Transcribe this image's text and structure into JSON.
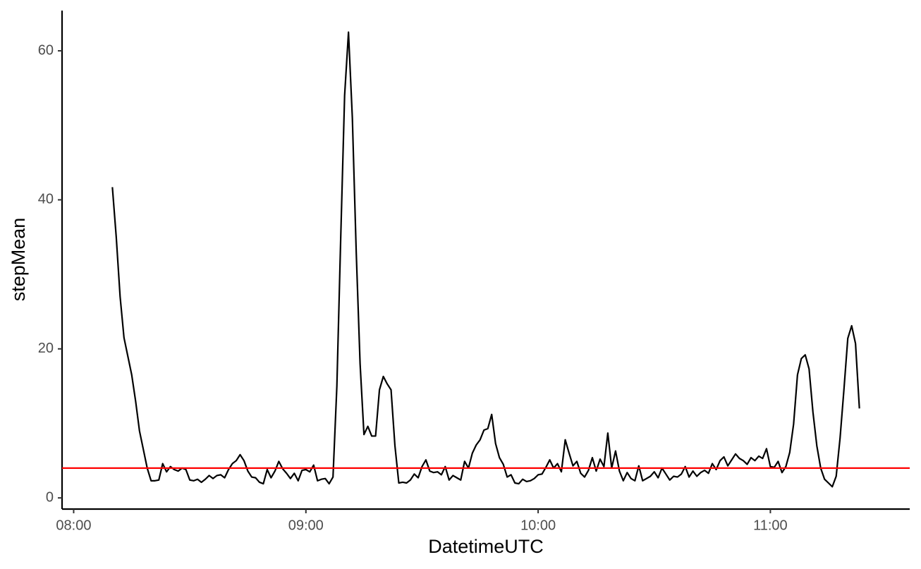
{
  "chart_data": {
    "type": "line",
    "x_label": "DatetimeUTC",
    "y_label": "stepMean",
    "x": [
      "08:10",
      "08:11",
      "08:12",
      "08:13",
      "08:14",
      "08:15",
      "08:16",
      "08:17",
      "08:18",
      "08:19",
      "08:20",
      "08:21",
      "08:22",
      "08:23",
      "08:24",
      "08:25",
      "08:26",
      "08:27",
      "08:28",
      "08:29",
      "08:30",
      "08:31",
      "08:32",
      "08:33",
      "08:34",
      "08:35",
      "08:36",
      "08:37",
      "08:38",
      "08:39",
      "08:40",
      "08:41",
      "08:42",
      "08:43",
      "08:44",
      "08:45",
      "08:46",
      "08:47",
      "08:48",
      "08:49",
      "08:50",
      "08:51",
      "08:52",
      "08:53",
      "08:54",
      "08:55",
      "08:56",
      "08:57",
      "08:58",
      "08:59",
      "09:00",
      "09:01",
      "09:02",
      "09:03",
      "09:04",
      "09:05",
      "09:06",
      "09:07",
      "09:08",
      "09:09",
      "09:10",
      "09:11",
      "09:12",
      "09:13",
      "09:14",
      "09:15",
      "09:16",
      "09:17",
      "09:18",
      "09:19",
      "09:20",
      "09:21",
      "09:22",
      "09:23",
      "09:24",
      "09:25",
      "09:26",
      "09:27",
      "09:28",
      "09:29",
      "09:30",
      "09:31",
      "09:32",
      "09:33",
      "09:34",
      "09:35",
      "09:36",
      "09:37",
      "09:38",
      "09:39",
      "09:40",
      "09:41",
      "09:42",
      "09:43",
      "09:44",
      "09:45",
      "09:46",
      "09:47",
      "09:48",
      "09:49",
      "09:50",
      "09:51",
      "09:52",
      "09:53",
      "09:54",
      "09:55",
      "09:56",
      "09:57",
      "09:58",
      "09:59",
      "10:00",
      "10:01",
      "10:02",
      "10:03",
      "10:04",
      "10:05",
      "10:06",
      "10:07",
      "10:08",
      "10:09",
      "10:10",
      "10:11",
      "10:12",
      "10:13",
      "10:14",
      "10:15",
      "10:16",
      "10:17",
      "10:18",
      "10:19",
      "10:20",
      "10:21",
      "10:22",
      "10:23",
      "10:24",
      "10:25",
      "10:26",
      "10:27",
      "10:28",
      "10:29",
      "10:30",
      "10:31",
      "10:32",
      "10:33",
      "10:34",
      "10:35",
      "10:36",
      "10:37",
      "10:38",
      "10:39",
      "10:40",
      "10:41",
      "10:42",
      "10:43",
      "10:44",
      "10:45",
      "10:46",
      "10:47",
      "10:48",
      "10:49",
      "10:50",
      "10:51",
      "10:52",
      "10:53",
      "10:54",
      "10:55",
      "10:56",
      "10:57",
      "10:58",
      "10:59",
      "11:00",
      "11:01",
      "11:02",
      "11:03",
      "11:04",
      "11:05",
      "11:06",
      "11:07",
      "11:08",
      "11:09",
      "11:10",
      "11:11",
      "11:12",
      "11:13",
      "11:14",
      "11:15",
      "11:16",
      "11:17",
      "11:18",
      "11:19",
      "11:20",
      "11:21",
      "11:22",
      "11:23"
    ],
    "values": [
      41.7,
      35,
      27,
      21.5,
      19,
      16.5,
      13,
      9,
      6.5,
      4,
      2.3,
      2.3,
      2.4,
      4.6,
      3.5,
      4.2,
      3.8,
      3.6,
      4,
      3.8,
      2.4,
      2.3,
      2.5,
      2.1,
      2.5,
      3,
      2.6,
      3,
      3.1,
      2.7,
      3.8,
      4.6,
      5,
      5.8,
      5,
      3.6,
      2.8,
      2.7,
      2.1,
      1.9,
      3.8,
      2.7,
      3.6,
      4.9,
      3.9,
      3.3,
      2.6,
      3.3,
      2.3,
      3.7,
      3.8,
      3.5,
      4.4,
      2.3,
      2.5,
      2.6,
      1.9,
      2.8,
      15,
      35,
      54,
      62.5,
      51,
      33,
      18,
      8.5,
      9.6,
      8.3,
      8.3,
      14.5,
      16.3,
      15.3,
      14.5,
      7,
      2,
      2.1,
      2,
      2.4,
      3.2,
      2.7,
      4.2,
      5.1,
      3.6,
      3.4,
      3.5,
      3.1,
      4.2,
      2.4,
      3,
      2.7,
      2.4,
      4.9,
      4,
      6,
      7.1,
      7.8,
      9.1,
      9.3,
      11.2,
      7.3,
      5.4,
      4.5,
      2.8,
      3.1,
      2,
      1.9,
      2.5,
      2.2,
      2.3,
      2.6,
      3.1,
      3.2,
      4.1,
      5.1,
      4,
      4.6,
      3.5,
      7.8,
      6,
      4.3,
      4.9,
      3.3,
      2.8,
      3.7,
      5.4,
      3.6,
      5.2,
      4.2,
      8.7,
      4,
      6.3,
      3.6,
      2.3,
      3.4,
      2.6,
      2.3,
      4.3,
      2.3,
      2.6,
      2.9,
      3.5,
      2.7,
      4,
      3.2,
      2.4,
      2.9,
      2.8,
      3.2,
      4.2,
      2.8,
      3.6,
      2.9,
      3.4,
      3.7,
      3.3,
      4.6,
      3.8,
      5,
      5.5,
      4.3,
      5.1,
      5.9,
      5.3,
      5,
      4.5,
      5.4,
      5,
      5.6,
      5.3,
      6.6,
      4.2,
      4.1,
      4.9,
      3.4,
      4.2,
      6.1,
      9.9,
      16.5,
      18.7,
      19.2,
      17.3,
      11.5,
      7,
      4,
      2.5,
      2,
      1.5,
      2.9,
      8,
      14.5,
      21.4,
      23.1,
      20.7,
      12
    ],
    "color": "#000000",
    "reference_line": {
      "value": 4,
      "color": "#ff0000"
    },
    "xlim": [
      "07:57",
      "11:36"
    ],
    "xticks": [
      "08:00",
      "09:00",
      "10:00",
      "11:00"
    ],
    "ylim": [
      -1.5,
      65.4
    ],
    "yticks": [
      0,
      20,
      40,
      60
    ],
    "grid": false
  }
}
